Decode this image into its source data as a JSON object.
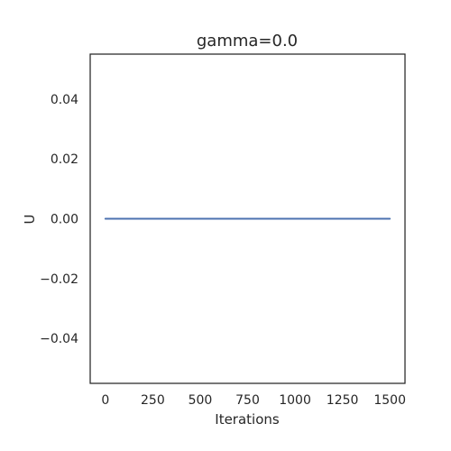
{
  "chart_data": {
    "type": "line",
    "title": "gamma=0.0",
    "xlabel": "Iterations",
    "ylabel": "U",
    "xlim": [
      -80,
      1580
    ],
    "ylim": [
      -0.055,
      0.055
    ],
    "xticks": [
      0,
      250,
      500,
      750,
      1000,
      1250,
      1500
    ],
    "xtick_labels": [
      "0",
      "250",
      "500",
      "750",
      "1000",
      "1250",
      "1500"
    ],
    "yticks": [
      -0.04,
      -0.02,
      0.0,
      0.02,
      0.04
    ],
    "ytick_labels": [
      "−0.04",
      "−0.02",
      "0.00",
      "0.02",
      "0.04"
    ],
    "grid": false,
    "series": [
      {
        "color": "#4c72b0",
        "x": [
          0,
          1500
        ],
        "y": [
          0.0,
          0.0
        ]
      }
    ]
  }
}
